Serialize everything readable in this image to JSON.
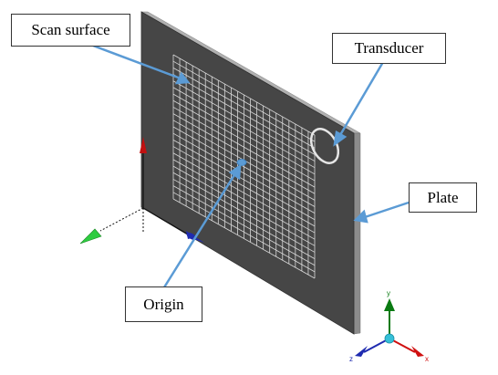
{
  "labels": {
    "scan_surface": "Scan surface",
    "transducer": "Transducer",
    "plate": "Plate",
    "origin": "Origin"
  },
  "triad": {
    "x": "x",
    "y": "y",
    "z": "z"
  },
  "colors": {
    "plate": "#464646",
    "plate_edge": "#9a9a9a",
    "grid": "#d9d9d9",
    "leader": "#5b9bd5",
    "axis_x": "#d01010",
    "axis_y": "#0a7a12",
    "axis_z": "#1f2bb0",
    "triad_center": "#35c0d8"
  }
}
